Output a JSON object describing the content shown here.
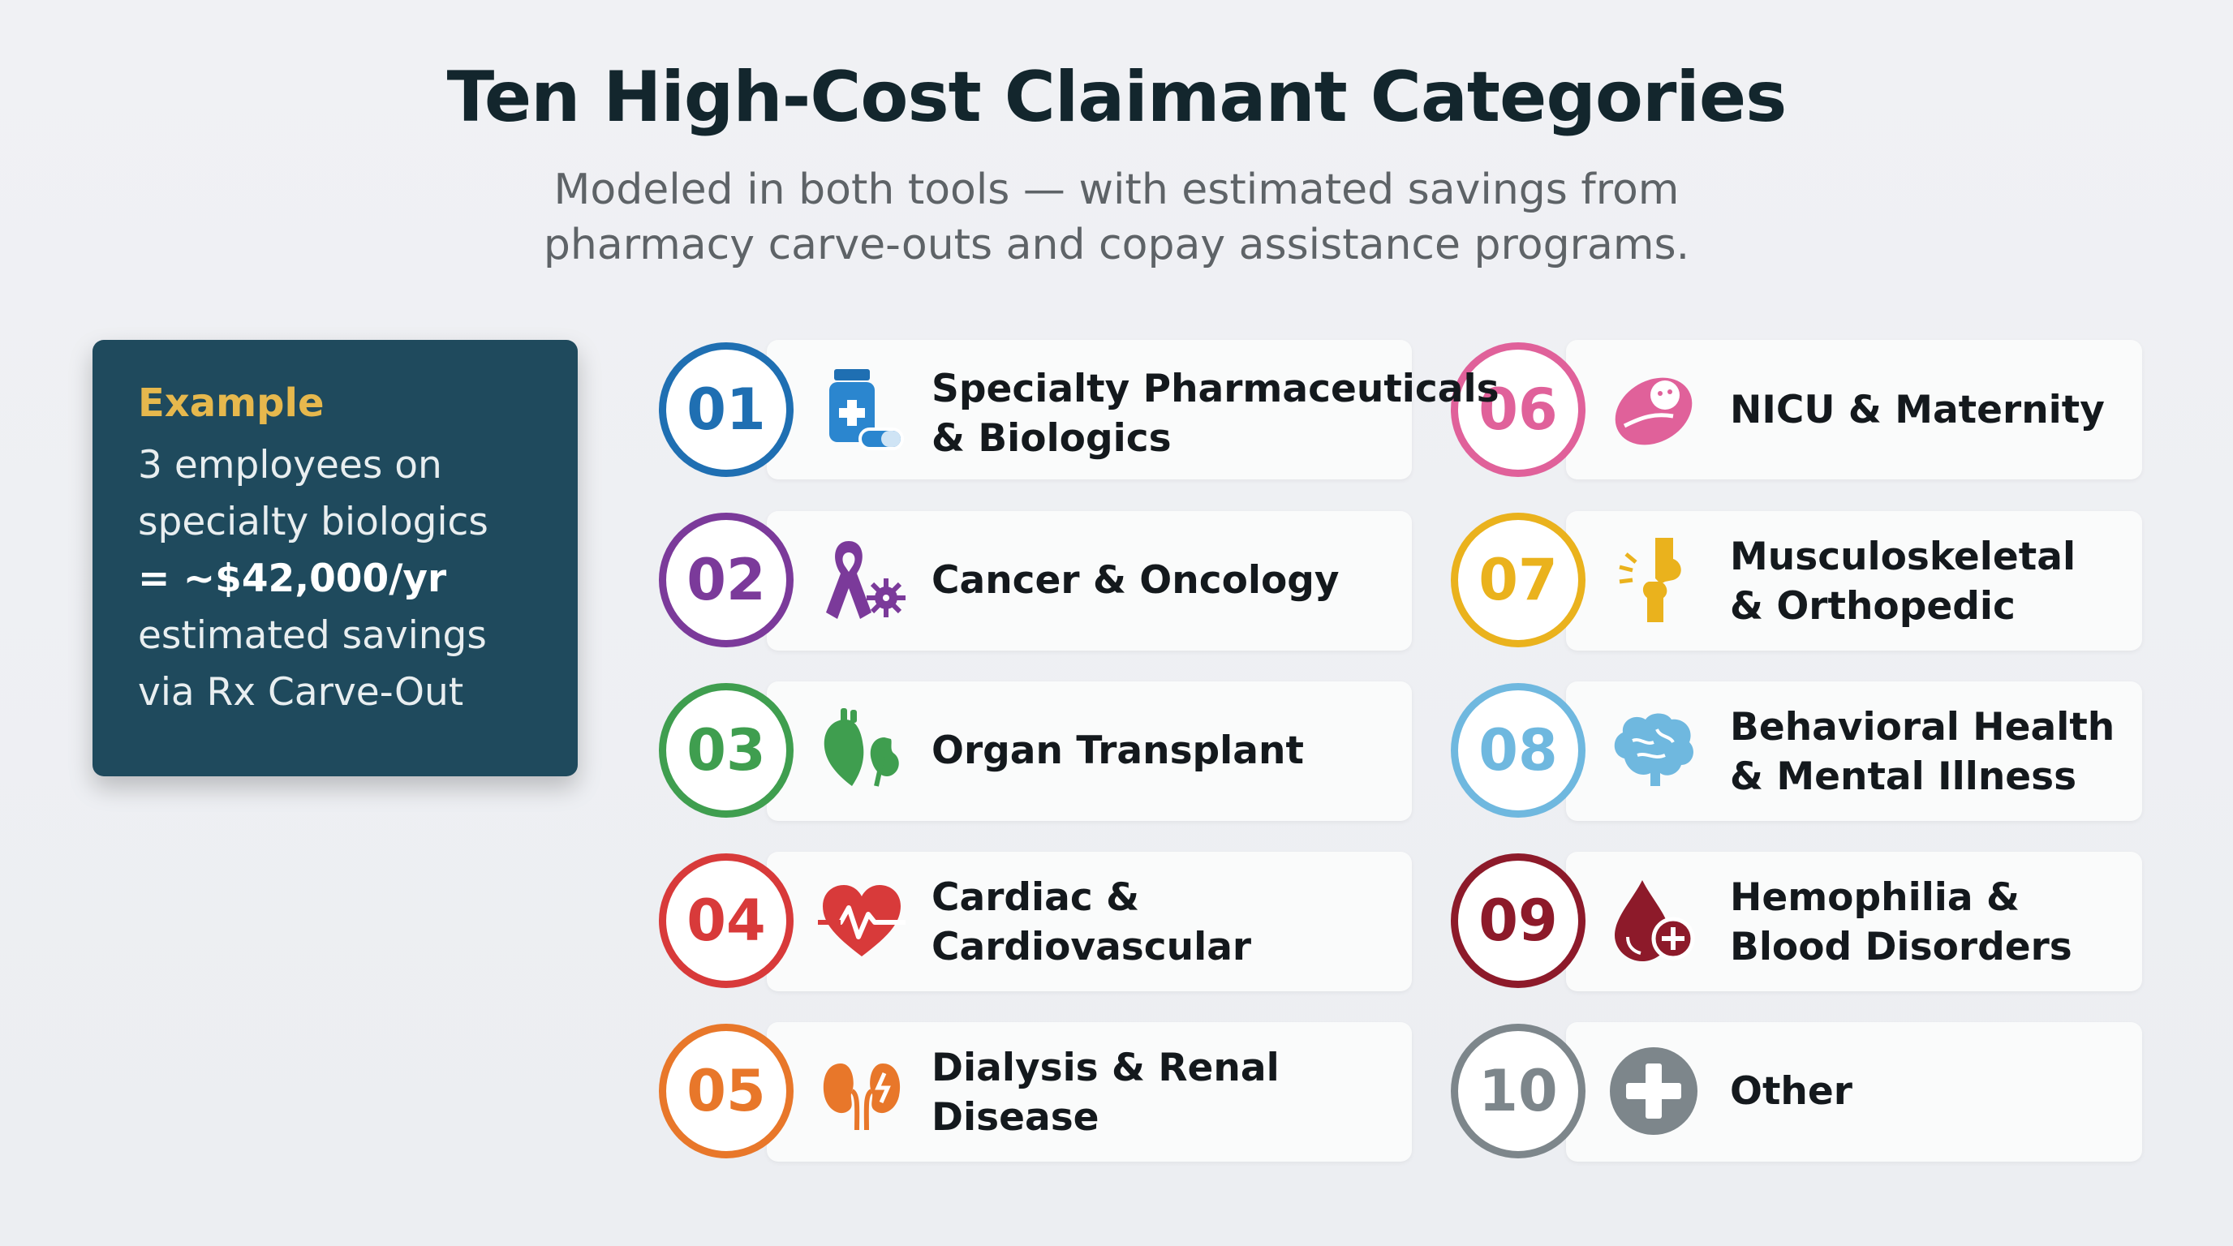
{
  "header": {
    "title": "Ten High-Cost Claimant Categories",
    "subtitle_line1": "Modeled in both tools — with estimated savings from",
    "subtitle_line2": "pharmacy carve-outs and copay assistance programs."
  },
  "example": {
    "title": "Example",
    "line1": "3 employees on",
    "line2": "specialty biologics",
    "line3": "= ~$42,000/yr",
    "line4": "estimated savings",
    "line5": "via Rx Carve-Out"
  },
  "categories": [
    {
      "number": "01",
      "label_line1": "Specialty Pharmaceuticals",
      "label_line2": "& Biologics",
      "icon": "pill-bottle-icon",
      "color": "#1f6fb2"
    },
    {
      "number": "02",
      "label_line1": "Cancer & Oncology",
      "label_line2": "",
      "icon": "cancer-ribbon-icon",
      "color": "#7b3a9a"
    },
    {
      "number": "03",
      "label_line1": "Organ Transplant",
      "label_line2": "",
      "icon": "heart-kidney-icon",
      "color": "#3f9e4f"
    },
    {
      "number": "04",
      "label_line1": "Cardiac &",
      "label_line2": "Cardiovascular",
      "icon": "heartbeat-icon",
      "color": "#d83a3a"
    },
    {
      "number": "05",
      "label_line1": "Dialysis & Renal",
      "label_line2": "Disease",
      "icon": "kidney-icon",
      "color": "#e8772a"
    },
    {
      "number": "06",
      "label_line1": "NICU & Maternity",
      "label_line2": "",
      "icon": "baby-icon",
      "color": "#e0619a"
    },
    {
      "number": "07",
      "label_line1": "Musculoskeletal",
      "label_line2": "& Orthopedic",
      "icon": "joint-icon",
      "color": "#eab21d"
    },
    {
      "number": "08",
      "label_line1": "Behavioral Health",
      "label_line2": "& Mental Illness",
      "icon": "brain-icon",
      "color": "#6fb8df"
    },
    {
      "number": "09",
      "label_line1": "Hemophilia &",
      "label_line2": "Blood Disorders",
      "icon": "blood-drop-icon",
      "color": "#8d1a2a"
    },
    {
      "number": "10",
      "label_line1": "Other",
      "label_line2": "",
      "icon": "plus-icon",
      "color": "#7d868b"
    }
  ]
}
